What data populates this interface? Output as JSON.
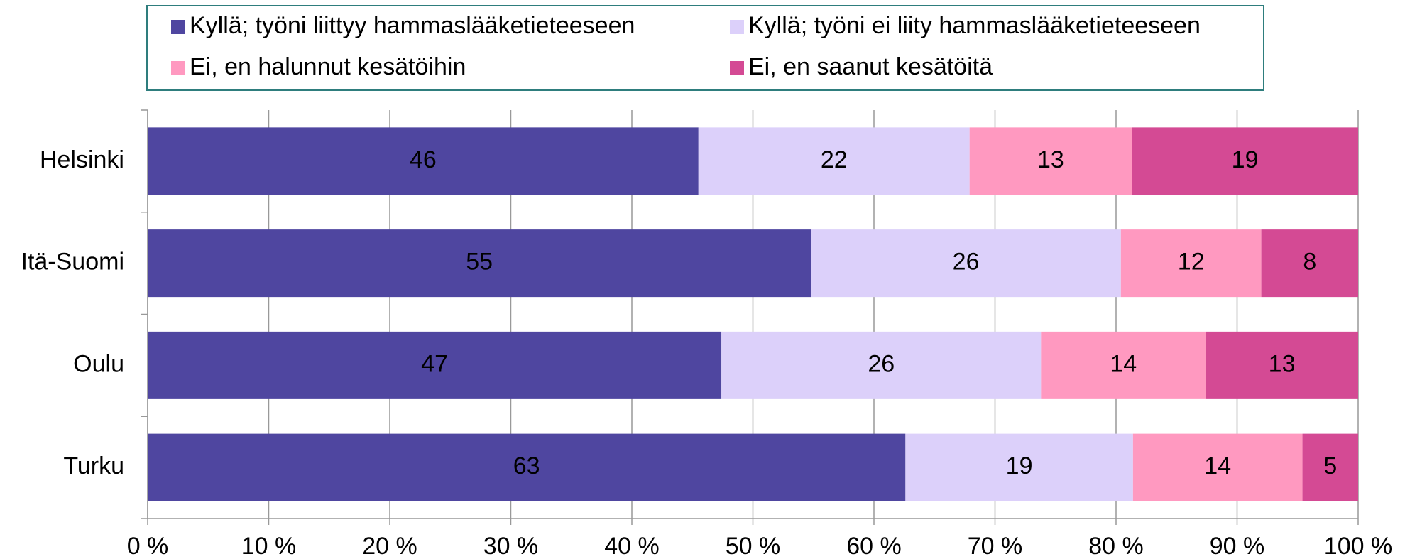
{
  "chart_data": {
    "type": "stacked_barh",
    "categories": [
      "Helsinki",
      "Itä-Suomi",
      "Oulu",
      "Turku"
    ],
    "series": [
      {
        "name": "Kyllä; työni liittyy hammaslääketieteeseen",
        "color": "#4f46a0",
        "values": [
          45.5,
          54.8,
          47.4,
          62.6
        ],
        "value_labels": [
          "46",
          "55",
          "47",
          "63"
        ]
      },
      {
        "name": "Kyllä; työni ei liity hammaslääketieteeseen",
        "color": "#dcd0fa",
        "values": [
          22.4,
          25.6,
          26.4,
          18.8
        ],
        "value_labels": [
          "22",
          "26",
          "26",
          "19"
        ]
      },
      {
        "name": "Ei, en halunnut kesätöihin",
        "color": "#ff99c0",
        "values": [
          13.4,
          11.6,
          13.6,
          14.0
        ],
        "value_labels": [
          "13",
          "12",
          "14",
          "14"
        ]
      },
      {
        "name": "Ei, en saanut kesätöitä",
        "color": "#d44a94",
        "values": [
          18.7,
          8.0,
          12.6,
          4.6
        ],
        "value_labels": [
          "19",
          "8",
          "13",
          "5"
        ]
      }
    ],
    "xlim": [
      0,
      100
    ],
    "xticks": [
      {
        "value": 0,
        "label": "0 %"
      },
      {
        "value": 10,
        "label": "10 %"
      },
      {
        "value": 20,
        "label": "20 %"
      },
      {
        "value": 30,
        "label": "30 %"
      },
      {
        "value": 40,
        "label": "40 %"
      },
      {
        "value": 50,
        "label": "50 %"
      },
      {
        "value": 60,
        "label": "60 %"
      },
      {
        "value": 70,
        "label": "70 %"
      },
      {
        "value": 80,
        "label": "80 %"
      },
      {
        "value": 90,
        "label": "90 %"
      },
      {
        "value": 100,
        "label": "100 %"
      }
    ],
    "grid": true,
    "legend": "top"
  }
}
